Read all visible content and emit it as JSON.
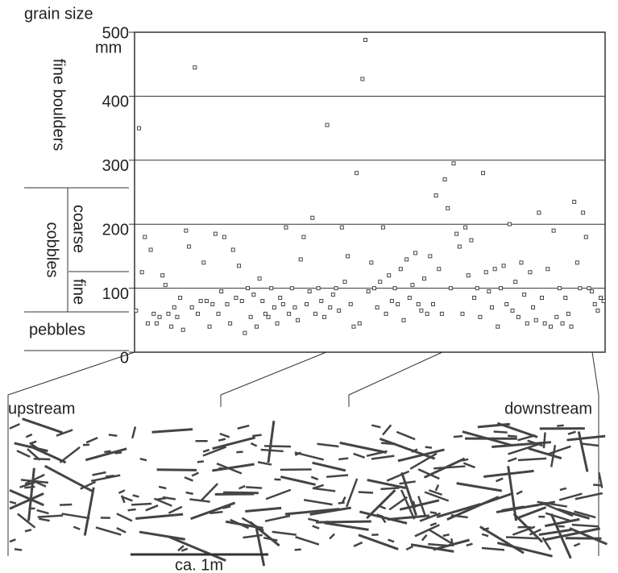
{
  "chart_data": {
    "type": "scatter",
    "y_label": "grain size",
    "y_unit": "mm",
    "size_classes": {
      "fine_boulders": "fine boulders",
      "cobbles": "cobbles",
      "coarse": "coarse",
      "fine": "fine",
      "pebbles": "pebbles"
    },
    "ylim": [
      0,
      500
    ],
    "yticks": [
      0,
      100,
      200,
      300,
      400,
      500
    ],
    "grid": true,
    "color": "#444444",
    "values": [
      65,
      350,
      125,
      180,
      45,
      160,
      60,
      45,
      55,
      120,
      105,
      60,
      40,
      70,
      55,
      85,
      35,
      190,
      165,
      70,
      445,
      60,
      80,
      140,
      80,
      40,
      75,
      185,
      60,
      95,
      180,
      75,
      45,
      160,
      85,
      135,
      80,
      30,
      100,
      55,
      90,
      40,
      115,
      80,
      60,
      55,
      100,
      70,
      45,
      85,
      75,
      195,
      60,
      100,
      70,
      50,
      145,
      180,
      75,
      95,
      210,
      60,
      100,
      80,
      55,
      355,
      70,
      90,
      100,
      65,
      195,
      110,
      150,
      75,
      40,
      280,
      45,
      427,
      488,
      95,
      140,
      100,
      70,
      110,
      195,
      60,
      120,
      80,
      100,
      75,
      130,
      50,
      145,
      85,
      105,
      155,
      75,
      65,
      115,
      60,
      150,
      75,
      245,
      130,
      60,
      270,
      225,
      100,
      295,
      185,
      165,
      60,
      195,
      120,
      175,
      85,
      100,
      55,
      280,
      125,
      95,
      70,
      130,
      40,
      100,
      135,
      75,
      200,
      65,
      110,
      55,
      140,
      90,
      45,
      125,
      70,
      50,
      218,
      85,
      45,
      130,
      40,
      190,
      55,
      100,
      45,
      85,
      60,
      40,
      235,
      140,
      100,
      218,
      180,
      100,
      95,
      75,
      65,
      85,
      80
    ]
  },
  "diagram": {
    "upstream": "upstream",
    "downstream": "downstream",
    "scale_label": "ca. 1m"
  }
}
